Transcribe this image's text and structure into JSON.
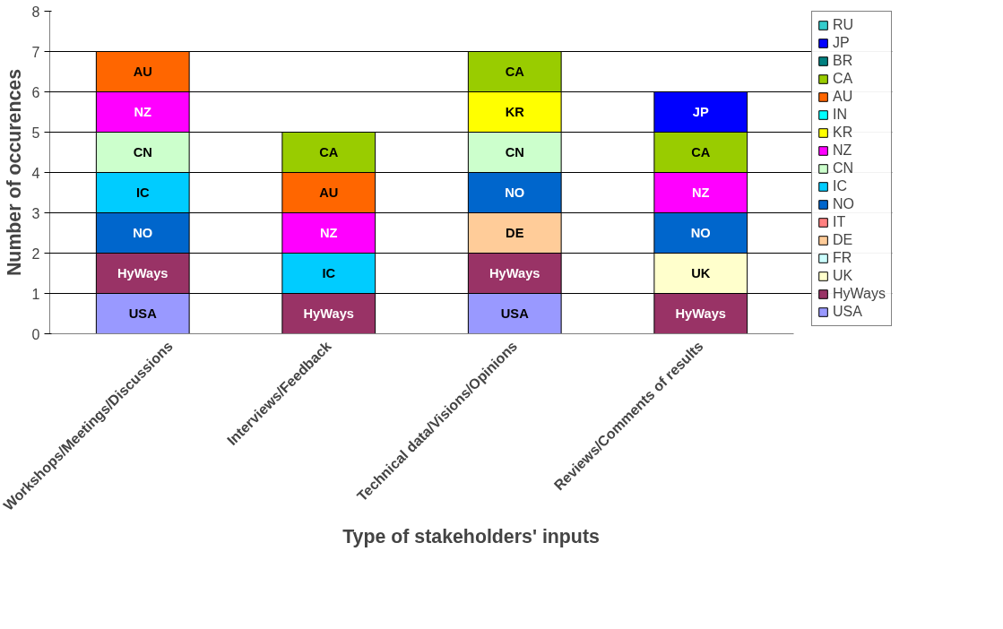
{
  "chart_data": {
    "type": "bar",
    "stacked": true,
    "xlabel": "Type of stakeholders' inputs",
    "ylabel": "Number of occurences",
    "categories": [
      "Workshops/Meetings/Discussions",
      "Interviews/Feedback",
      "Technical data/Visions/Opinions",
      "Reviews/Comments of results"
    ],
    "ylim": [
      0,
      8
    ],
    "yticks": [
      0,
      1,
      2,
      3,
      4,
      5,
      6,
      7,
      8
    ],
    "grid": "y",
    "legend": "right",
    "series": [
      {
        "name": "USA",
        "color": "#9999ff",
        "values": [
          1,
          0,
          1,
          0
        ],
        "value_labels": [
          "USA",
          null,
          "USA",
          null
        ]
      },
      {
        "name": "HyWays",
        "color": "#993366",
        "values": [
          1,
          1,
          1,
          1
        ],
        "value_labels": [
          "HyWays",
          "HyWays",
          "HyWays",
          "HyWays"
        ]
      },
      {
        "name": "UK",
        "color": "#ffffcc",
        "values": [
          0,
          0,
          0,
          1
        ],
        "value_labels": [
          null,
          null,
          null,
          "UK"
        ]
      },
      {
        "name": "FR",
        "color": "#ccffff",
        "values": [
          0,
          0,
          0,
          0
        ]
      },
      {
        "name": "DE",
        "color": "#ffcc99",
        "values": [
          0,
          0,
          1,
          0
        ],
        "value_labels": [
          null,
          null,
          "DE",
          null
        ]
      },
      {
        "name": "IT",
        "color": "#ff8080",
        "values": [
          0,
          0,
          0,
          0
        ]
      },
      {
        "name": "NO",
        "color": "#0066cc",
        "values": [
          1,
          0,
          1,
          1
        ],
        "value_labels": [
          "NO",
          null,
          "NO",
          "NO"
        ]
      },
      {
        "name": "IC",
        "color": "#00ccff",
        "values": [
          1,
          1,
          0,
          0
        ],
        "value_labels": [
          "IC",
          "IC",
          null,
          null
        ]
      },
      {
        "name": "CN",
        "color": "#ccffcc",
        "values": [
          1,
          0,
          1,
          0
        ],
        "value_labels": [
          "CN",
          null,
          "CN",
          null
        ]
      },
      {
        "name": "NZ",
        "color": "#ff00ff",
        "values": [
          1,
          1,
          0,
          1
        ],
        "value_labels": [
          "NZ",
          "NZ",
          null,
          "NZ"
        ]
      },
      {
        "name": "KR",
        "color": "#ffff00",
        "values": [
          0,
          0,
          1,
          0
        ],
        "value_labels": [
          null,
          null,
          "KR",
          null
        ]
      },
      {
        "name": "IN",
        "color": "#00ffff",
        "values": [
          0,
          0,
          0,
          0
        ]
      },
      {
        "name": "AU",
        "color": "#ff6600",
        "values": [
          1,
          1,
          0,
          0
        ],
        "value_labels": [
          "AU",
          "AU",
          null,
          null
        ]
      },
      {
        "name": "CA",
        "color": "#99cc00",
        "values": [
          0,
          1,
          1,
          1
        ],
        "value_labels": [
          null,
          "CA",
          "CA",
          "CA"
        ]
      },
      {
        "name": "BR",
        "color": "#008080",
        "values": [
          0,
          0,
          0,
          0
        ]
      },
      {
        "name": "JP",
        "color": "#0000ff",
        "values": [
          0,
          0,
          0,
          1
        ],
        "value_labels": [
          null,
          null,
          null,
          "JP"
        ]
      },
      {
        "name": "RU",
        "color": "#33cccc",
        "values": [
          0,
          0,
          0,
          0
        ]
      }
    ]
  }
}
